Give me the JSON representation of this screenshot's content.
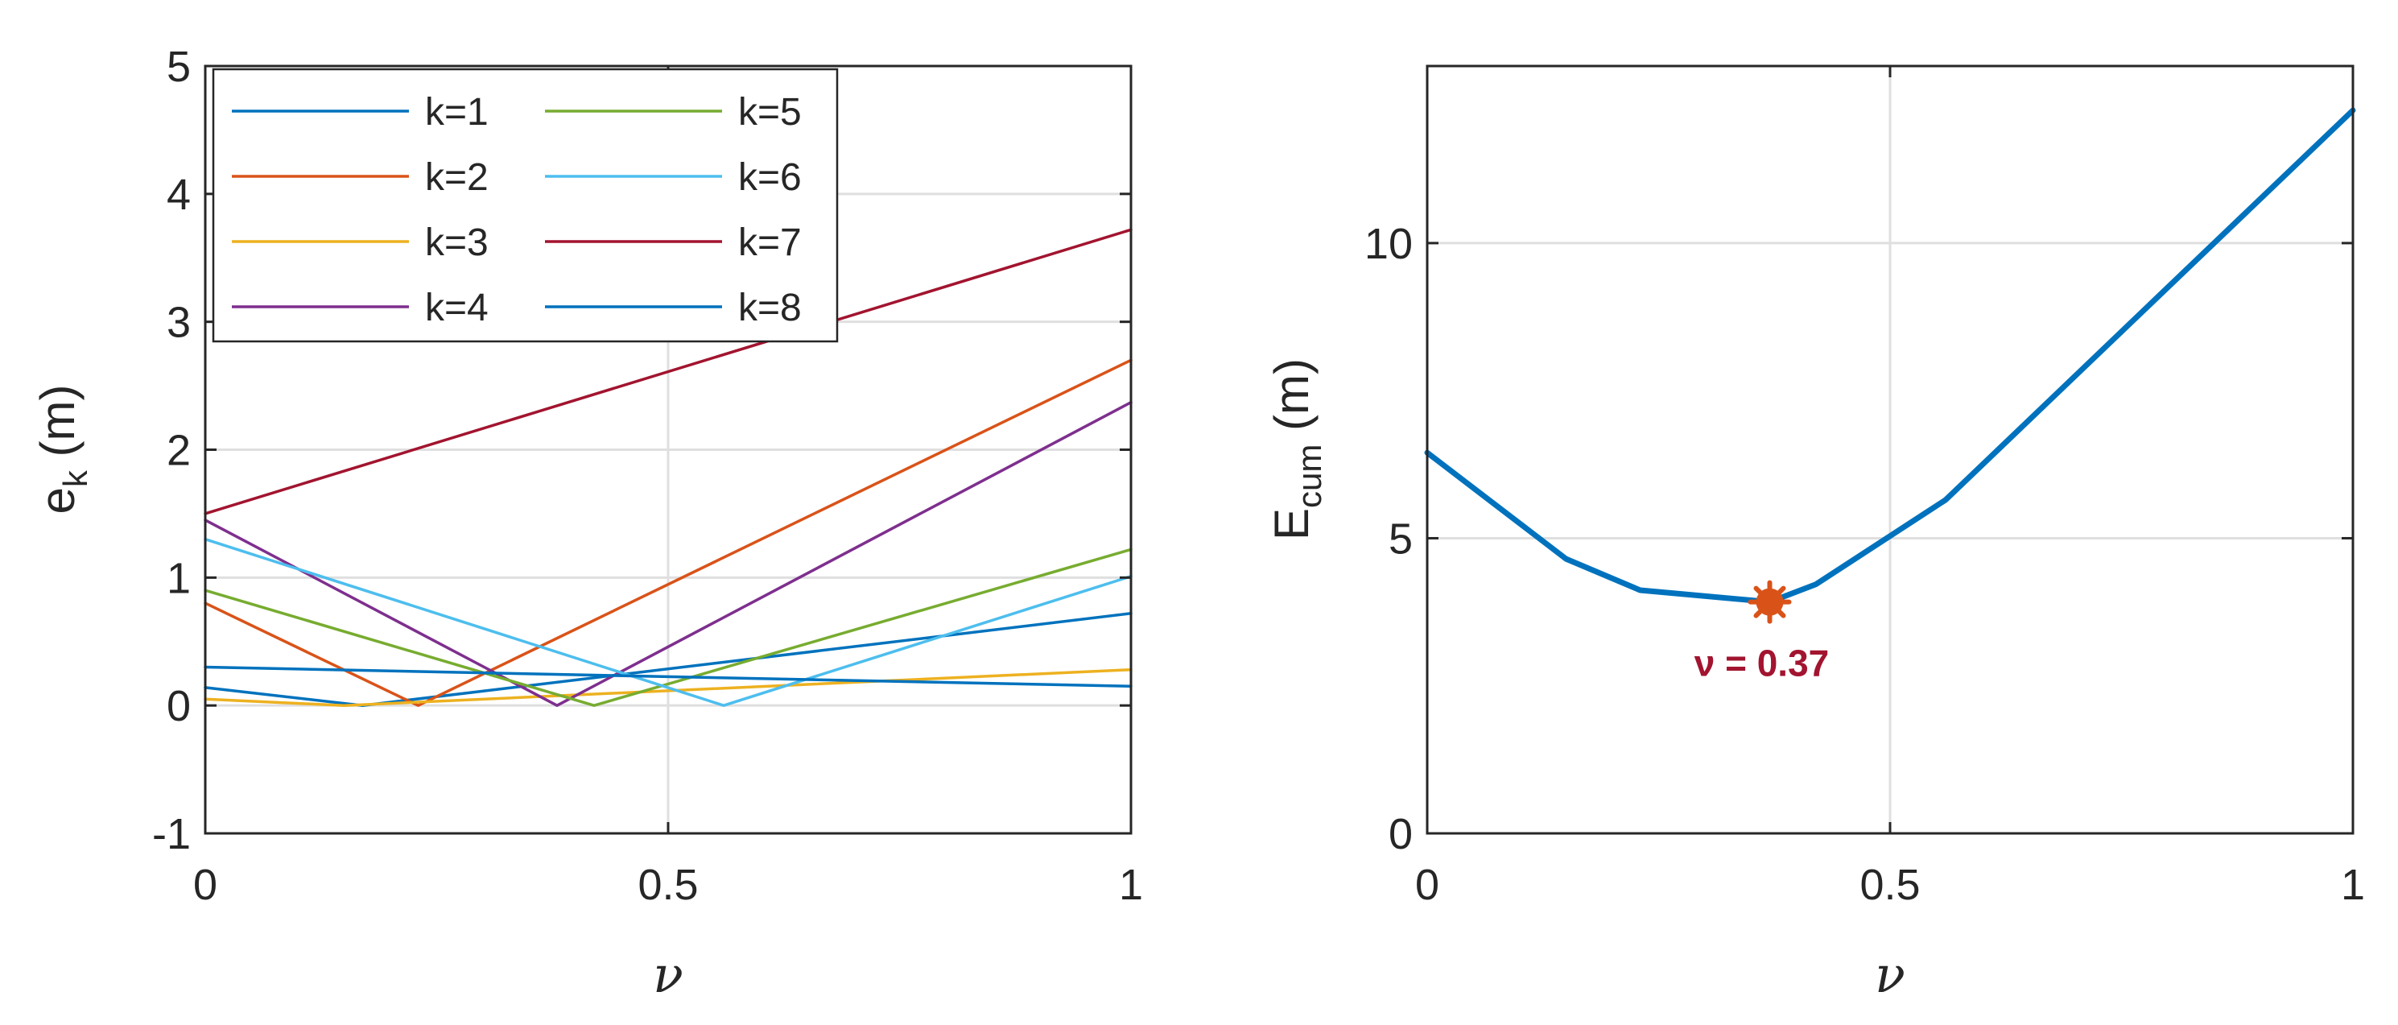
{
  "chart_data": [
    {
      "type": "line",
      "title": "",
      "xlabel": "ν",
      "ylabel": "e_k (m)",
      "ylabel_main": "e",
      "ylabel_sub": "k",
      "ylabel_unit": "(m)",
      "xlim": [
        0,
        1
      ],
      "ylim": [
        -1,
        5
      ],
      "x_ticks": [
        0,
        0.5,
        1
      ],
      "x_tick_labels": [
        "0",
        "0.5",
        "1"
      ],
      "y_ticks": [
        -1,
        0,
        1,
        2,
        3,
        4,
        5
      ],
      "y_tick_labels": [
        "-1",
        "0",
        "1",
        "2",
        "3",
        "4",
        "5"
      ],
      "grid": true,
      "legend_position": "top-left",
      "series": [
        {
          "name": "k=1",
          "color": "#0072BD",
          "x": [
            0,
            0.17,
            1
          ],
          "y": [
            0.14,
            0.0,
            0.72
          ]
        },
        {
          "name": "k=2",
          "color": "#D95319",
          "x": [
            0,
            0.23,
            1
          ],
          "y": [
            0.8,
            0.0,
            2.7
          ]
        },
        {
          "name": "k=3",
          "color": "#EDB120",
          "x": [
            0,
            0.15,
            1
          ],
          "y": [
            0.05,
            0.0,
            0.28
          ]
        },
        {
          "name": "k=4",
          "color": "#7E2F8E",
          "x": [
            0,
            0.38,
            1
          ],
          "y": [
            1.45,
            0.0,
            2.37
          ]
        },
        {
          "name": "k=5",
          "color": "#77AC30",
          "x": [
            0,
            0.42,
            1
          ],
          "y": [
            0.9,
            0.0,
            1.22
          ]
        },
        {
          "name": "k=6",
          "color": "#4DBEEE",
          "x": [
            0,
            0.56,
            1
          ],
          "y": [
            1.3,
            0.0,
            1.01
          ]
        },
        {
          "name": "k=7",
          "color": "#A2142F",
          "x": [
            0,
            1
          ],
          "y": [
            1.5,
            3.72
          ]
        },
        {
          "name": "k=8",
          "color": "#0072BD",
          "x": [
            0,
            1
          ],
          "y": [
            0.3,
            0.15
          ]
        }
      ]
    },
    {
      "type": "line",
      "title": "",
      "xlabel": "ν",
      "ylabel": "E_cum (m)",
      "ylabel_main": "E",
      "ylabel_sub": "cum",
      "ylabel_unit": "(m)",
      "xlim": [
        0,
        1
      ],
      "ylim": [
        0,
        13
      ],
      "x_ticks": [
        0,
        0.5,
        1
      ],
      "x_tick_labels": [
        "0",
        "0.5",
        "1"
      ],
      "y_ticks": [
        0,
        5,
        10
      ],
      "y_tick_labels": [
        "0",
        "5",
        "10"
      ],
      "grid": true,
      "series": [
        {
          "name": "E_cum",
          "color": "#0072BD",
          "x": [
            0,
            0.15,
            0.23,
            0.37,
            0.42,
            0.56,
            1
          ],
          "y": [
            6.45,
            4.65,
            4.12,
            3.92,
            4.22,
            5.65,
            12.25
          ]
        }
      ],
      "marker": {
        "x": 0.37,
        "y": 3.92,
        "color": "#D95319"
      },
      "annotation": {
        "text": "ν = 0.37",
        "color": "#A2142F",
        "x": 0.37,
        "y": 2.8
      }
    }
  ]
}
